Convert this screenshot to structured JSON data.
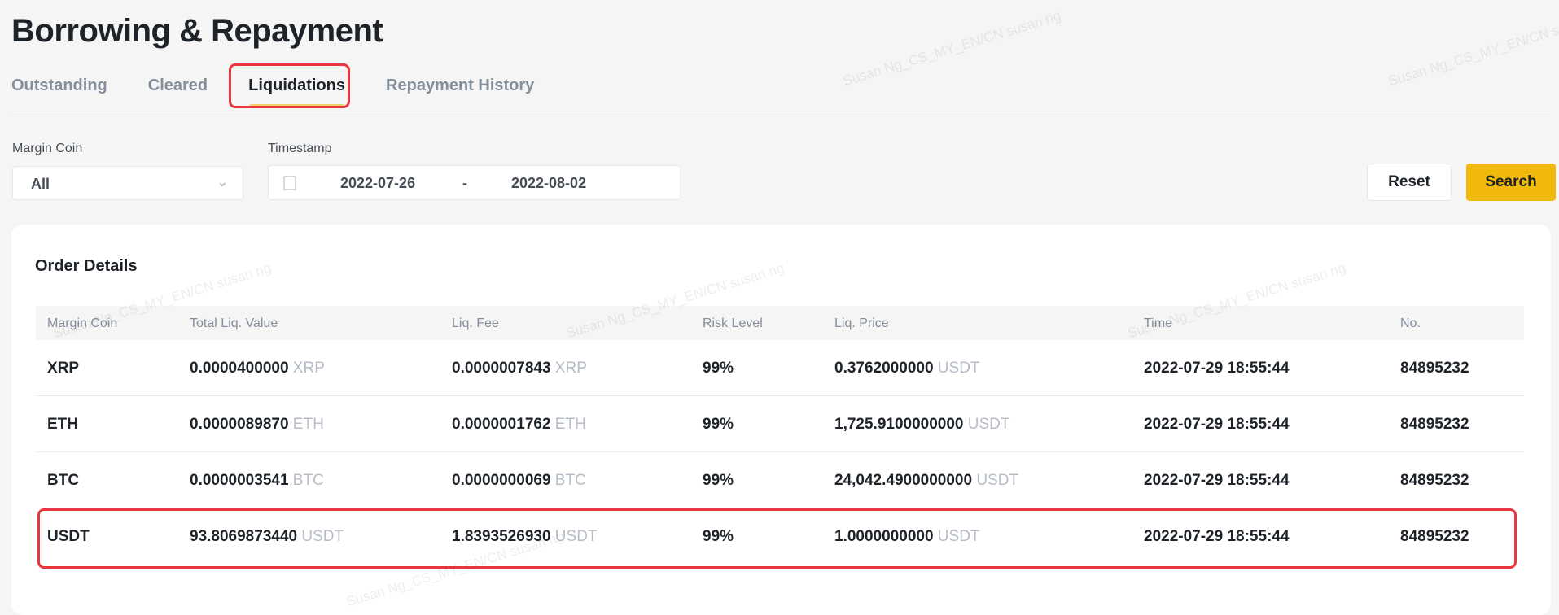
{
  "title": "Borrowing & Repayment",
  "tabs": [
    {
      "label": "Outstanding"
    },
    {
      "label": "Cleared"
    },
    {
      "label": "Liquidations",
      "active": true
    },
    {
      "label": "Repayment History"
    }
  ],
  "filters": {
    "margin_coin_label": "Margin Coin",
    "margin_coin_value": "All",
    "timestamp_label": "Timestamp",
    "date_start": "2022-07-26",
    "date_sep": "-",
    "date_end": "2022-08-02",
    "reset_label": "Reset",
    "search_label": "Search"
  },
  "card": {
    "title": "Order Details"
  },
  "table": {
    "headers": [
      "Margin Coin",
      "Total Liq. Value",
      "Liq. Fee",
      "Risk Level",
      "Liq. Price",
      "Time",
      "No."
    ],
    "rows": [
      {
        "coin": "XRP",
        "total": "0.0000400000",
        "total_unit": "XRP",
        "fee": "0.0000007843",
        "fee_unit": "XRP",
        "risk": "99%",
        "price": "0.3762000000",
        "price_unit": "USDT",
        "time": "2022-07-29 18:55:44",
        "no": "84895232"
      },
      {
        "coin": "ETH",
        "total": "0.0000089870",
        "total_unit": "ETH",
        "fee": "0.0000001762",
        "fee_unit": "ETH",
        "risk": "99%",
        "price": "1,725.9100000000",
        "price_unit": "USDT",
        "time": "2022-07-29 18:55:44",
        "no": "84895232"
      },
      {
        "coin": "BTC",
        "total": "0.0000003541",
        "total_unit": "BTC",
        "fee": "0.0000000069",
        "fee_unit": "BTC",
        "risk": "99%",
        "price": "24,042.4900000000",
        "price_unit": "USDT",
        "time": "2022-07-29 18:55:44",
        "no": "84895232"
      },
      {
        "coin": "USDT",
        "total": "93.8069873440",
        "total_unit": "USDT",
        "fee": "1.8393526930",
        "fee_unit": "USDT",
        "risk": "99%",
        "price": "1.0000000000",
        "price_unit": "USDT",
        "time": "2022-07-29 18:55:44",
        "no": "84895232"
      }
    ]
  },
  "watermark": "Susan Ng_CS_MY_EN/CN susan ng",
  "colors": {
    "accent": "#f0b90b",
    "highlight": "#e8383d"
  }
}
